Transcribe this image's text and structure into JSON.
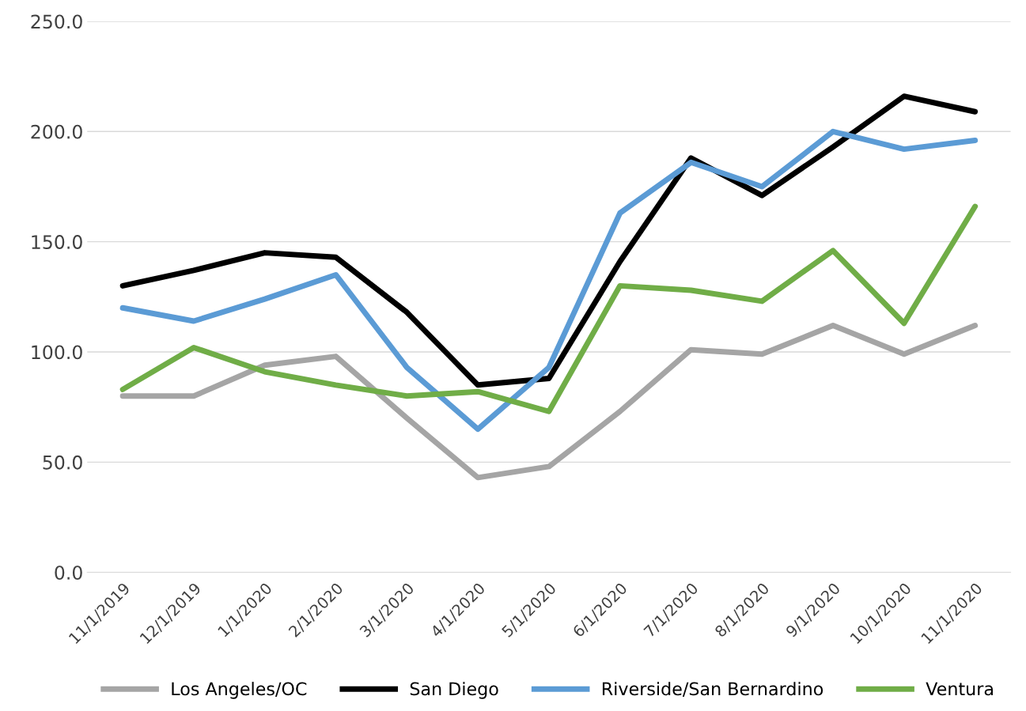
{
  "chart_data": {
    "type": "line",
    "categories": [
      "11/1/2019",
      "12/1/2019",
      "1/1/2020",
      "2/1/2020",
      "3/1/2020",
      "4/1/2020",
      "5/1/2020",
      "6/1/2020",
      "7/1/2020",
      "8/1/2020",
      "9/1/2020",
      "10/1/2020",
      "11/1/2020"
    ],
    "series": [
      {
        "name": "Los Angeles/OC",
        "color": "#a5a5a5",
        "values": [
          80,
          80,
          94,
          98,
          70,
          43,
          48,
          73,
          101,
          99,
          112,
          99,
          112
        ]
      },
      {
        "name": "San Diego",
        "color": "#000000",
        "values": [
          130,
          137,
          145,
          143,
          118,
          85,
          88,
          141,
          188,
          171,
          193,
          216,
          209
        ]
      },
      {
        "name": "Riverside/San Bernardino",
        "color": "#5b9bd5",
        "values": [
          120,
          114,
          124,
          135,
          93,
          65,
          93,
          163,
          186,
          175,
          200,
          192,
          196
        ]
      },
      {
        "name": "Ventura",
        "color": "#70ad47",
        "values": [
          83,
          102,
          91,
          85,
          80,
          82,
          73,
          130,
          128,
          123,
          146,
          113,
          166
        ]
      }
    ],
    "ylim": [
      0,
      250
    ],
    "yticks": [
      {
        "value": 0,
        "label": "0.0"
      },
      {
        "value": 50,
        "label": "50.0"
      },
      {
        "value": 100,
        "label": "100.0"
      },
      {
        "value": 150,
        "label": "150.0"
      },
      {
        "value": 200,
        "label": "200.0"
      },
      {
        "value": 250,
        "label": "250.0"
      }
    ],
    "grid": "y",
    "legend": "bottom",
    "marker": "none",
    "line_style": "solid"
  }
}
